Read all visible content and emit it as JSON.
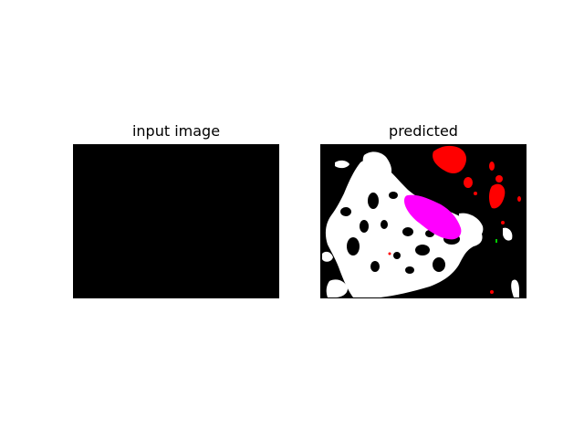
{
  "panels": [
    {
      "title": "input image",
      "content": "all black image"
    },
    {
      "title": "predicted",
      "content": "segmentation mask"
    }
  ],
  "colors": {
    "background": "#000000",
    "class_white": "#ffffff",
    "class_magenta": "#ff00ff",
    "class_red": "#ff0000",
    "class_green": "#00cc00"
  }
}
